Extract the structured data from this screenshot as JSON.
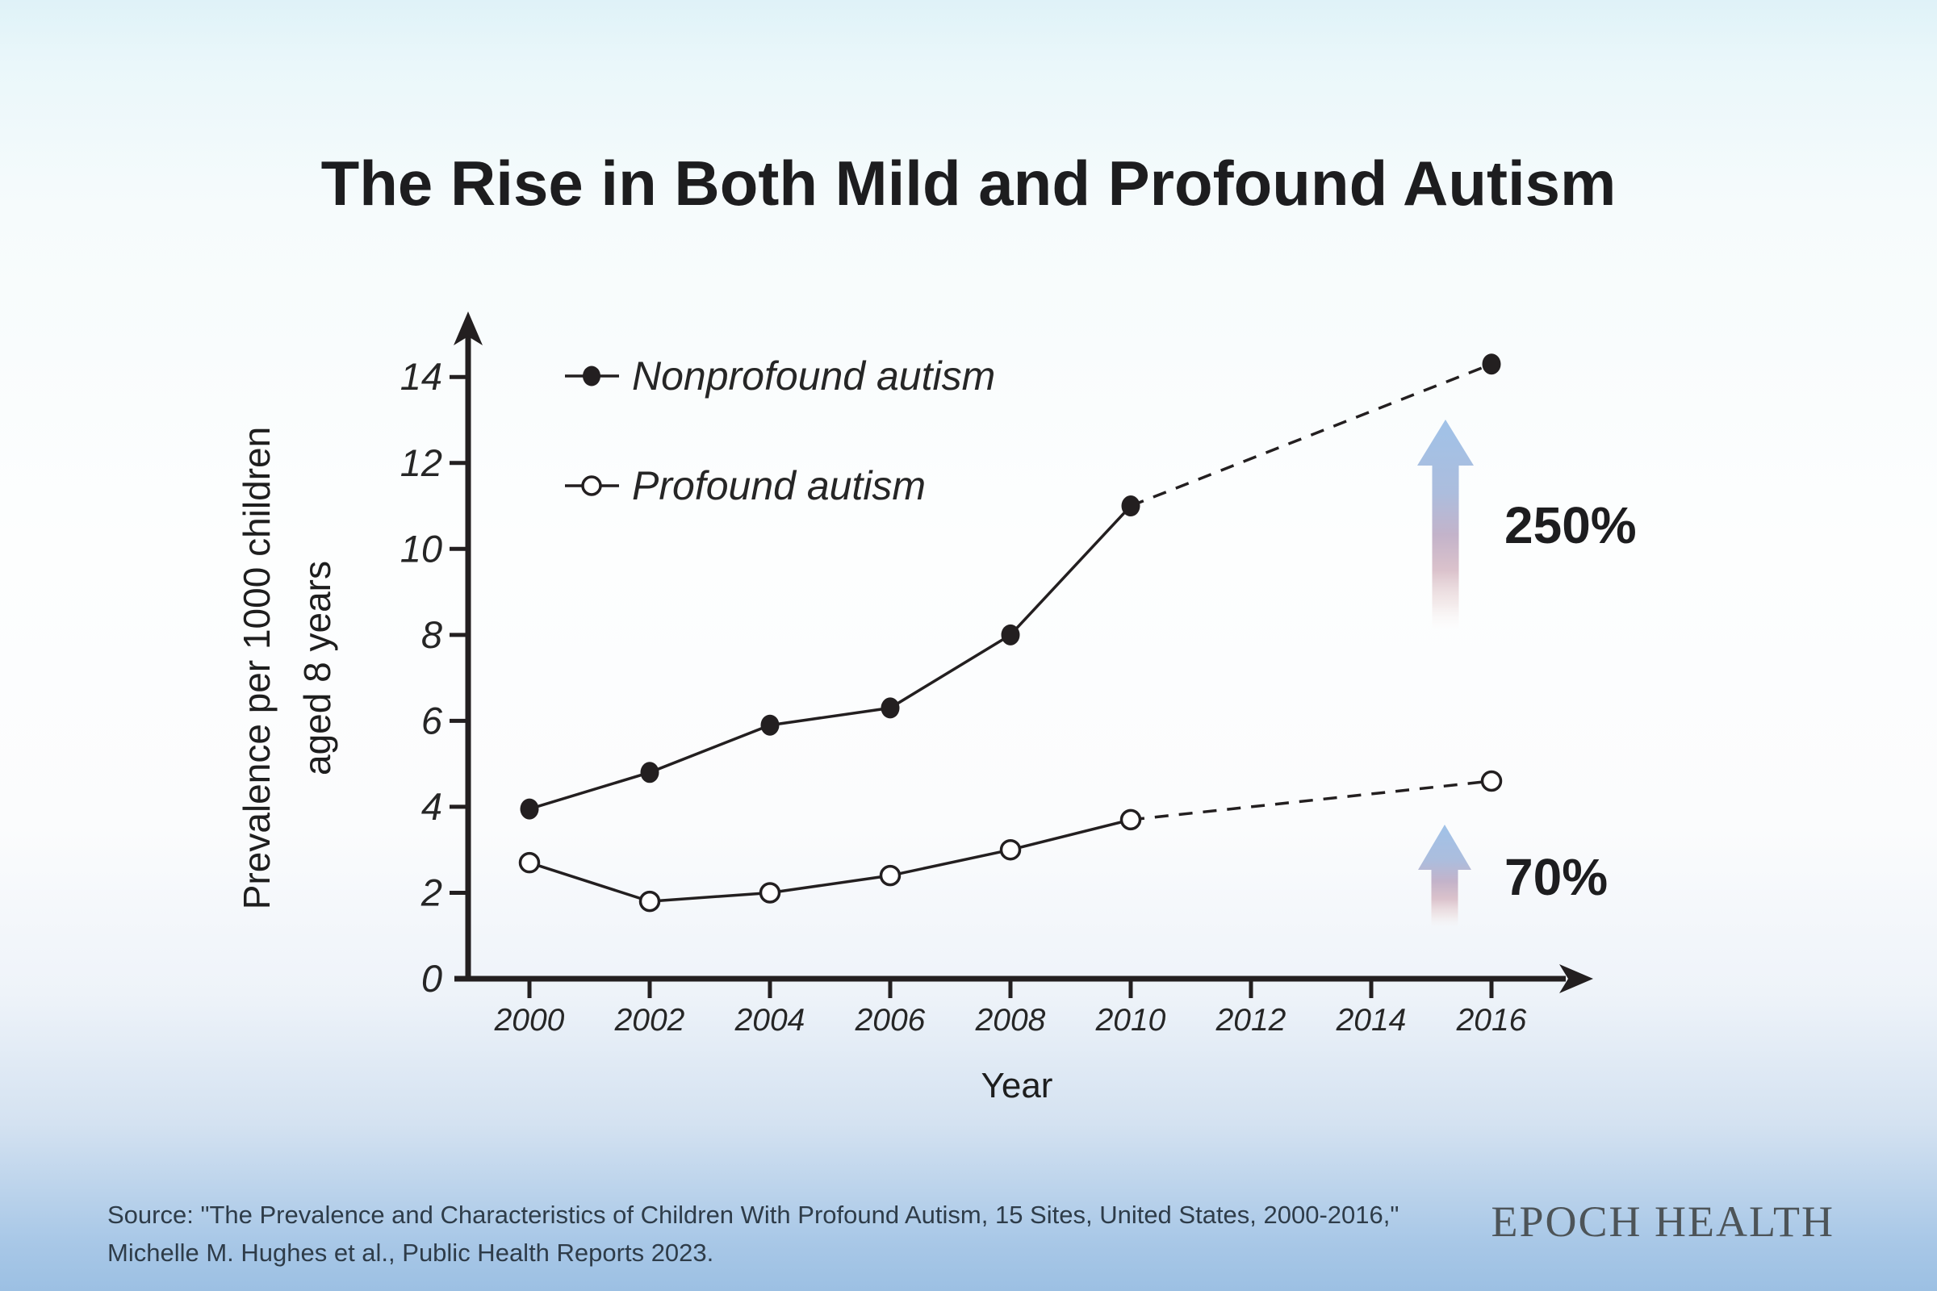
{
  "page": {
    "title": "The Rise in Both Mild and Profound Autism",
    "source": {
      "line1": "Source: \"The Prevalence and Characteristics of Children With Profound Autism, 15 Sites, United States, 2000-2016,\"",
      "line2": "Michelle M. Hughes et al., Public Health Reports 2023."
    },
    "brand": "EPOCH HEALTH"
  },
  "colors": {
    "ink": "#231f20",
    "title_text": "#1d1d1f",
    "source_text": "#2e3c49",
    "brand_text": "#4d5458",
    "arrow_blue": "#a0c2e8",
    "arrow_pink": "#d9bfc9",
    "background_top": "#dff2f8",
    "background_bottom": "#9cc0e3"
  },
  "chart_data": {
    "type": "line",
    "title": "",
    "xlabel": "Year",
    "ylabel": [
      "Prevalence per 1000 children",
      "aged 8 years"
    ],
    "x_ticks": [
      2000,
      2002,
      2004,
      2006,
      2008,
      2010,
      2012,
      2014,
      2016
    ],
    "y_ticks": [
      0,
      2,
      4,
      6,
      8,
      10,
      12,
      14
    ],
    "xlim": [
      1999,
      2017.6
    ],
    "ylim": [
      0,
      15.4
    ],
    "grid": false,
    "legend_position": "top-left-inside",
    "dashed_from_x": 2010,
    "series": [
      {
        "name": "Nonprofound autism",
        "marker": "filled-circle",
        "x": [
          2000,
          2002,
          2004,
          2006,
          2008,
          2010,
          2016
        ],
        "values": [
          3.95,
          4.8,
          5.9,
          6.3,
          8.0,
          11.0,
          14.3
        ]
      },
      {
        "name": "Profound autism",
        "marker": "open-circle",
        "x": [
          2000,
          2002,
          2004,
          2006,
          2008,
          2010,
          2016
        ],
        "values": [
          2.7,
          1.8,
          2.0,
          2.4,
          3.0,
          3.7,
          4.6
        ]
      }
    ],
    "annotations": [
      {
        "label": "250%"
      },
      {
        "label": "70%"
      }
    ]
  }
}
